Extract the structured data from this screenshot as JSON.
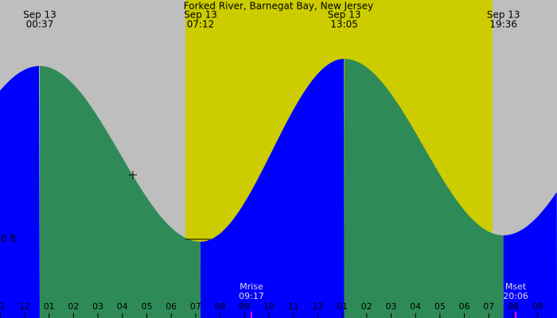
{
  "chart_data": {
    "type": "tide",
    "title": "Forked River, Barnegat Bay, New Jersey",
    "extremes": [
      {
        "date": "Sep 13",
        "time": "00:37"
      },
      {
        "date": "Sep 13",
        "time": "07:12"
      },
      {
        "date": "Sep 13",
        "time": "13:05"
      },
      {
        "date": "Sep 13",
        "time": "19:36"
      }
    ],
    "zero_label": "0 ft",
    "hours": [
      "1",
      "12",
      "01",
      "02",
      "03",
      "04",
      "05",
      "06",
      "07",
      "08",
      "09",
      "10",
      "11",
      "12",
      "01",
      "02",
      "03",
      "04",
      "05",
      "06",
      "07",
      "08",
      "09"
    ],
    "moon": [
      {
        "label": "Mrise",
        "time": "09:17"
      },
      {
        "label": "Mset",
        "time": "20:06"
      }
    ]
  }
}
